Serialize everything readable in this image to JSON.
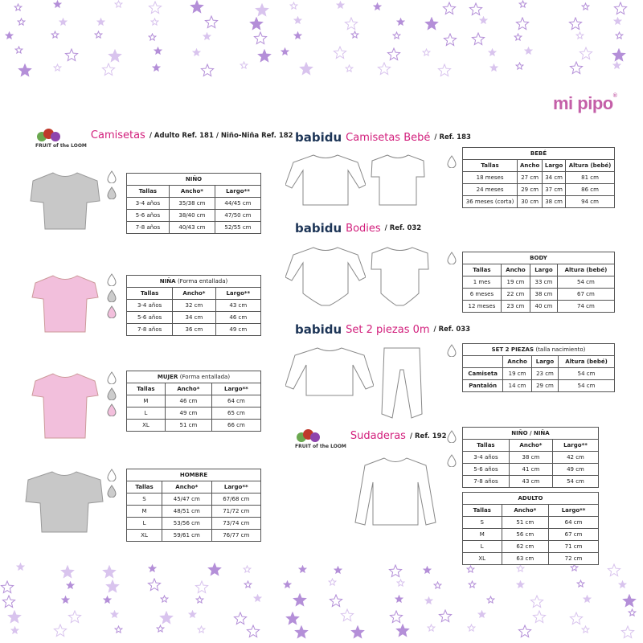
{
  "logo": "mi pipo",
  "colors": {
    "accent": "#d21f7c",
    "star": "#b48fd8",
    "brand": "#1d3557"
  },
  "sections": {
    "camisetas": {
      "brand": "FRUIT of the LOOM",
      "title": "Camisetas",
      "ref": "/ Adulto Ref. 181 / Niño-Niña Ref. 182"
    },
    "camisetas_bebe": {
      "brand": "babidu",
      "title": "Camisetas Bebé",
      "ref": "/ Ref. 183"
    },
    "bodies": {
      "brand": "babidu",
      "title": "Bodies",
      "ref": "/ Ref. 032"
    },
    "set": {
      "brand": "babidu",
      "title": "Set 2 piezas 0m",
      "ref": "/ Ref. 033"
    },
    "sudaderas": {
      "brand": "FRUIT of the LOOM",
      "title": "Sudaderas",
      "ref": "/ Ref. 192"
    }
  },
  "tables": [
    {
      "id": "nino",
      "title": "NIÑO",
      "sub": "",
      "head": [
        "Tallas",
        "Ancho*",
        "Largo**"
      ],
      "rows": [
        [
          "3-4 años",
          "35/38 cm",
          "44/45 cm"
        ],
        [
          "5-6 años",
          "38/40 cm",
          "47/50 cm"
        ],
        [
          "7-8 años",
          "40/43 cm",
          "52/55 cm"
        ]
      ]
    },
    {
      "id": "nina",
      "title": "NIÑA",
      "sub": "(Forma entallada)",
      "head": [
        "Tallas",
        "Ancho*",
        "Largo**"
      ],
      "rows": [
        [
          "3-4 años",
          "32 cm",
          "43 cm"
        ],
        [
          "5-6 años",
          "34 cm",
          "46 cm"
        ],
        [
          "7-8 años",
          "36 cm",
          "49 cm"
        ]
      ]
    },
    {
      "id": "mujer",
      "title": "MUJER",
      "sub": "(Forma entallada)",
      "head": [
        "Tallas",
        "Ancho*",
        "Largo**"
      ],
      "rows": [
        [
          "M",
          "46 cm",
          "64 cm"
        ],
        [
          "L",
          "49 cm",
          "65 cm"
        ],
        [
          "XL",
          "51 cm",
          "66 cm"
        ]
      ]
    },
    {
      "id": "hombre",
      "title": "HOMBRE",
      "sub": "",
      "head": [
        "Tallas",
        "Ancho*",
        "Largo**"
      ],
      "rows": [
        [
          "S",
          "45/47 cm",
          "67/68 cm"
        ],
        [
          "M",
          "48/51 cm",
          "71/72 cm"
        ],
        [
          "L",
          "53/56 cm",
          "73/74 cm"
        ],
        [
          "XL",
          "59/61 cm",
          "76/77 cm"
        ]
      ]
    },
    {
      "id": "bebe",
      "title": "BEBÉ",
      "sub": "",
      "head": [
        "Tallas",
        "Ancho",
        "Largo",
        "Altura (bebé)"
      ],
      "rows": [
        [
          "18 meses",
          "27 cm",
          "34 cm",
          "81 cm"
        ],
        [
          "24 meses",
          "29 cm",
          "37 cm",
          "86 cm"
        ],
        [
          "36 meses (corta)",
          "30 cm",
          "38 cm",
          "94 cm"
        ]
      ]
    },
    {
      "id": "body",
      "title": "BODY",
      "sub": "",
      "head": [
        "Tallas",
        "Ancho",
        "Largo",
        "Altura (bebé)"
      ],
      "rows": [
        [
          "1 mes",
          "19 cm",
          "33 cm",
          "54 cm"
        ],
        [
          "6 meses",
          "22 cm",
          "38 cm",
          "67 cm"
        ],
        [
          "12 meses",
          "23 cm",
          "40 cm",
          "74 cm"
        ]
      ]
    },
    {
      "id": "set2",
      "title": "SET 2 PIEZAS",
      "sub": "(talla nacimiento)",
      "head": [
        "",
        "Ancho",
        "Largo",
        "Altura (bebé)"
      ],
      "rows": [
        [
          "Camiseta",
          "19 cm",
          "23 cm",
          "54 cm"
        ],
        [
          "Pantalón",
          "14 cm",
          "29 cm",
          "54 cm"
        ]
      ]
    },
    {
      "id": "sud_nino",
      "title": "NIÑO / NIÑA",
      "sub": "",
      "head": [
        "Tallas",
        "Ancho*",
        "Largo**"
      ],
      "rows": [
        [
          "3-4 años",
          "38 cm",
          "42 cm"
        ],
        [
          "5-6 años",
          "41 cm",
          "49 cm"
        ],
        [
          "7-8 años",
          "43 cm",
          "54 cm"
        ]
      ]
    },
    {
      "id": "sud_adulto",
      "title": "ADULTO",
      "sub": "",
      "head": [
        "Tallas",
        "Ancho*",
        "Largo**"
      ],
      "rows": [
        [
          "S",
          "51 cm",
          "64 cm"
        ],
        [
          "M",
          "56 cm",
          "67 cm"
        ],
        [
          "L",
          "62 cm",
          "71 cm"
        ],
        [
          "XL",
          "63 cm",
          "72 cm"
        ]
      ]
    }
  ]
}
